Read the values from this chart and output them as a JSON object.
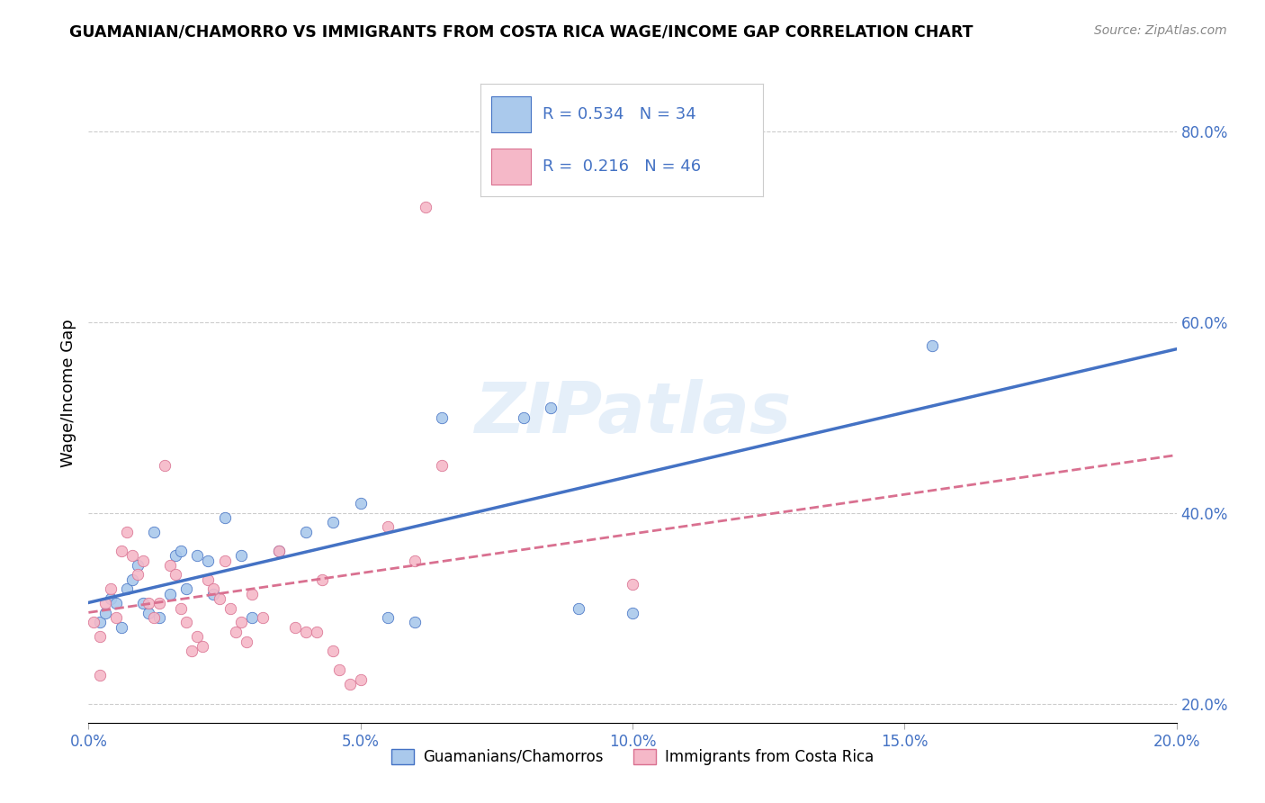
{
  "title": "GUAMANIAN/CHAMORRO VS IMMIGRANTS FROM COSTA RICA WAGE/INCOME GAP CORRELATION CHART",
  "source": "Source: ZipAtlas.com",
  "ylabel": "Wage/Income Gap",
  "watermark": "ZIPatlas",
  "legend1_R": "0.534",
  "legend1_N": "34",
  "legend2_R": "0.216",
  "legend2_N": "46",
  "legend1_label": "Guamanians/Chamorros",
  "legend2_label": "Immigrants from Costa Rica",
  "xlim": [
    0.0,
    0.2
  ],
  "ylim": [
    0.18,
    0.87
  ],
  "xticks": [
    0.0,
    0.05,
    0.1,
    0.15,
    0.2
  ],
  "yticks_right": [
    0.2,
    0.4,
    0.6,
    0.8
  ],
  "blue_color": "#aac9ec",
  "pink_color": "#f5b8c8",
  "blue_line_color": "#4472c4",
  "pink_line_color": "#d97090",
  "blue_scatter": [
    [
      0.002,
      0.285
    ],
    [
      0.003,
      0.295
    ],
    [
      0.004,
      0.31
    ],
    [
      0.005,
      0.305
    ],
    [
      0.006,
      0.28
    ],
    [
      0.007,
      0.32
    ],
    [
      0.008,
      0.33
    ],
    [
      0.009,
      0.345
    ],
    [
      0.01,
      0.305
    ],
    [
      0.011,
      0.295
    ],
    [
      0.012,
      0.38
    ],
    [
      0.013,
      0.29
    ],
    [
      0.015,
      0.315
    ],
    [
      0.016,
      0.355
    ],
    [
      0.017,
      0.36
    ],
    [
      0.018,
      0.32
    ],
    [
      0.02,
      0.355
    ],
    [
      0.022,
      0.35
    ],
    [
      0.023,
      0.315
    ],
    [
      0.025,
      0.395
    ],
    [
      0.028,
      0.355
    ],
    [
      0.03,
      0.29
    ],
    [
      0.035,
      0.36
    ],
    [
      0.04,
      0.38
    ],
    [
      0.045,
      0.39
    ],
    [
      0.05,
      0.41
    ],
    [
      0.055,
      0.29
    ],
    [
      0.06,
      0.285
    ],
    [
      0.065,
      0.5
    ],
    [
      0.08,
      0.5
    ],
    [
      0.085,
      0.51
    ],
    [
      0.09,
      0.3
    ],
    [
      0.1,
      0.295
    ],
    [
      0.155,
      0.575
    ]
  ],
  "pink_scatter": [
    [
      0.001,
      0.285
    ],
    [
      0.002,
      0.27
    ],
    [
      0.003,
      0.305
    ],
    [
      0.004,
      0.32
    ],
    [
      0.005,
      0.29
    ],
    [
      0.006,
      0.36
    ],
    [
      0.007,
      0.38
    ],
    [
      0.008,
      0.355
    ],
    [
      0.009,
      0.335
    ],
    [
      0.01,
      0.35
    ],
    [
      0.011,
      0.305
    ],
    [
      0.012,
      0.29
    ],
    [
      0.013,
      0.305
    ],
    [
      0.014,
      0.45
    ],
    [
      0.015,
      0.345
    ],
    [
      0.016,
      0.335
    ],
    [
      0.017,
      0.3
    ],
    [
      0.018,
      0.285
    ],
    [
      0.019,
      0.255
    ],
    [
      0.02,
      0.27
    ],
    [
      0.021,
      0.26
    ],
    [
      0.022,
      0.33
    ],
    [
      0.023,
      0.32
    ],
    [
      0.024,
      0.31
    ],
    [
      0.025,
      0.35
    ],
    [
      0.026,
      0.3
    ],
    [
      0.027,
      0.275
    ],
    [
      0.028,
      0.285
    ],
    [
      0.029,
      0.265
    ],
    [
      0.03,
      0.315
    ],
    [
      0.032,
      0.29
    ],
    [
      0.035,
      0.36
    ],
    [
      0.038,
      0.28
    ],
    [
      0.04,
      0.275
    ],
    [
      0.042,
      0.275
    ],
    [
      0.043,
      0.33
    ],
    [
      0.045,
      0.255
    ],
    [
      0.046,
      0.235
    ],
    [
      0.048,
      0.22
    ],
    [
      0.05,
      0.225
    ],
    [
      0.055,
      0.385
    ],
    [
      0.06,
      0.35
    ],
    [
      0.062,
      0.72
    ],
    [
      0.065,
      0.45
    ],
    [
      0.1,
      0.325
    ],
    [
      0.002,
      0.23
    ]
  ],
  "background_color": "#ffffff",
  "grid_color": "#cccccc"
}
